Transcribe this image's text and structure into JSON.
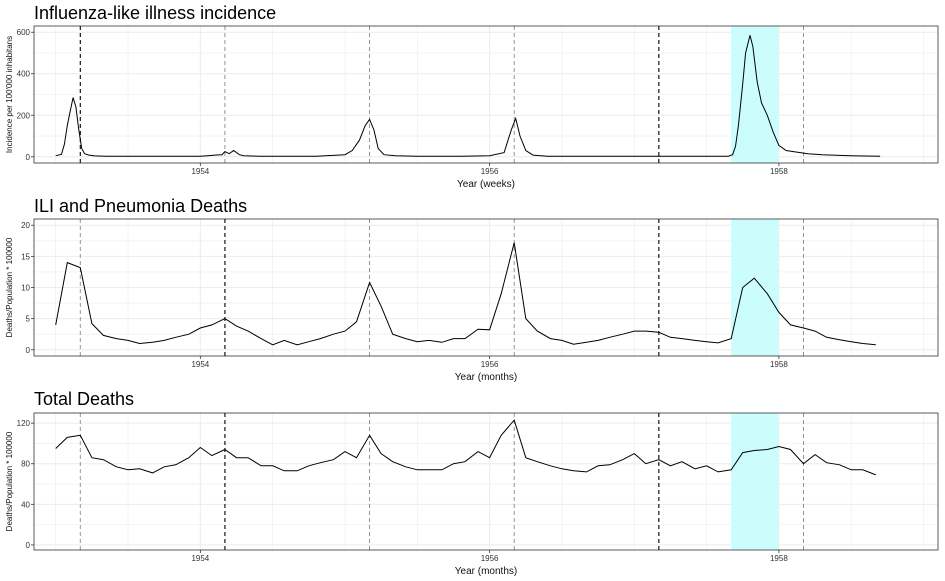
{
  "colors": {
    "highlight": "#ccfdfd",
    "line": "#000000",
    "grid": "#ececec",
    "panel_border": "#333333",
    "vline_dark": "#000000",
    "vline_light": "#888888"
  },
  "chart_data": [
    {
      "type": "line",
      "title": "Influenza-like illness incidence",
      "xlabel": "Year (weeks)",
      "ylabel": "Incidence per 100'000 inhabitans",
      "xlim": [
        1952.85,
        1959.1
      ],
      "ylim": [
        -30,
        630
      ],
      "xticks": [
        1954,
        1956,
        1958
      ],
      "xtick_labels": [
        "1954",
        "1956",
        "1958"
      ],
      "yticks": [
        0,
        200,
        400,
        600
      ],
      "ytick_labels": [
        "0",
        "200",
        "400",
        "600"
      ],
      "grid": true,
      "highlight_span": [
        1957.67,
        1958.0
      ],
      "vlines": [
        {
          "x": 1953.17,
          "style": "dark"
        },
        {
          "x": 1954.17,
          "style": "light"
        },
        {
          "x": 1955.17,
          "style": "light"
        },
        {
          "x": 1956.17,
          "style": "light"
        },
        {
          "x": 1957.17,
          "style": "dark"
        },
        {
          "x": 1958.17,
          "style": "light"
        }
      ],
      "x": [
        1953.0,
        1953.04,
        1953.06,
        1953.08,
        1953.1,
        1953.12,
        1953.14,
        1953.16,
        1953.18,
        1953.2,
        1953.23,
        1953.27,
        1953.35,
        1953.5,
        1953.7,
        1953.9,
        1954.0,
        1954.05,
        1954.1,
        1954.15,
        1954.17,
        1954.2,
        1954.23,
        1954.27,
        1954.3,
        1954.4,
        1954.6,
        1954.8,
        1955.0,
        1955.05,
        1955.1,
        1955.14,
        1955.17,
        1955.2,
        1955.23,
        1955.27,
        1955.35,
        1955.5,
        1955.8,
        1956.0,
        1956.1,
        1956.15,
        1956.18,
        1956.21,
        1956.25,
        1956.3,
        1956.4,
        1956.6,
        1956.8,
        1957.0,
        1957.2,
        1957.5,
        1957.6,
        1957.65,
        1957.68,
        1957.7,
        1957.72,
        1957.75,
        1957.77,
        1957.8,
        1957.82,
        1957.85,
        1957.88,
        1957.92,
        1957.96,
        1958.0,
        1958.05,
        1958.1,
        1958.2,
        1958.3,
        1958.5,
        1958.7
      ],
      "y": [
        5,
        12,
        60,
        150,
        220,
        285,
        240,
        130,
        40,
        15,
        8,
        4,
        3,
        3,
        3,
        3,
        3,
        5,
        8,
        10,
        25,
        15,
        30,
        10,
        5,
        3,
        3,
        3,
        10,
        30,
        80,
        150,
        180,
        130,
        40,
        10,
        5,
        3,
        3,
        5,
        20,
        130,
        185,
        100,
        30,
        8,
        3,
        3,
        3,
        3,
        3,
        3,
        3,
        3,
        10,
        50,
        150,
        350,
        500,
        585,
        530,
        360,
        260,
        200,
        120,
        55,
        30,
        25,
        15,
        10,
        5,
        3
      ]
    },
    {
      "type": "line",
      "title": "ILI and Pneumonia Deaths",
      "xlabel": "Year (months)",
      "ylabel": "Deaths/Population * 100000",
      "xlim": [
        1952.85,
        1959.1
      ],
      "ylim": [
        -1,
        21
      ],
      "xticks": [
        1954,
        1956,
        1958
      ],
      "xtick_labels": [
        "1954",
        "1956",
        "1958"
      ],
      "yticks": [
        0,
        5,
        10,
        15,
        20
      ],
      "ytick_labels": [
        "0",
        "5",
        "10",
        "15",
        "20"
      ],
      "grid": true,
      "highlight_span": [
        1957.67,
        1958.0
      ],
      "vlines": [
        {
          "x": 1953.17,
          "style": "light"
        },
        {
          "x": 1954.17,
          "style": "dark"
        },
        {
          "x": 1955.17,
          "style": "light"
        },
        {
          "x": 1956.17,
          "style": "light"
        },
        {
          "x": 1957.17,
          "style": "dark"
        },
        {
          "x": 1958.17,
          "style": "light"
        }
      ],
      "x": [
        1953.0,
        1953.08,
        1953.17,
        1953.25,
        1953.33,
        1953.42,
        1953.5,
        1953.58,
        1953.67,
        1953.75,
        1953.83,
        1953.92,
        1954.0,
        1954.08,
        1954.17,
        1954.25,
        1954.33,
        1954.42,
        1954.5,
        1954.58,
        1954.67,
        1954.75,
        1954.83,
        1954.92,
        1955.0,
        1955.08,
        1955.17,
        1955.25,
        1955.33,
        1955.42,
        1955.5,
        1955.58,
        1955.67,
        1955.75,
        1955.83,
        1955.92,
        1956.0,
        1956.08,
        1956.17,
        1956.25,
        1956.33,
        1956.42,
        1956.5,
        1956.58,
        1956.67,
        1956.75,
        1956.83,
        1956.92,
        1957.0,
        1957.08,
        1957.17,
        1957.25,
        1957.33,
        1957.42,
        1957.5,
        1957.58,
        1957.67,
        1957.75,
        1957.83,
        1957.92,
        1958.0,
        1958.08,
        1958.17,
        1958.25,
        1958.33,
        1958.42,
        1958.5,
        1958.58,
        1958.67
      ],
      "y": [
        4,
        14,
        13.2,
        4.2,
        2.3,
        1.8,
        1.5,
        1.0,
        1.2,
        1.5,
        2,
        2.5,
        3.5,
        4,
        5,
        3.8,
        3,
        1.8,
        0.8,
        1.5,
        0.8,
        1.3,
        1.8,
        2.5,
        3,
        4.5,
        10.8,
        7,
        2.5,
        1.8,
        1.3,
        1.5,
        1.2,
        1.8,
        1.8,
        3.3,
        3.2,
        9,
        17.2,
        5,
        3,
        1.8,
        1.5,
        0.9,
        1.2,
        1.5,
        2,
        2.5,
        3,
        3,
        2.8,
        2,
        1.8,
        1.5,
        1.3,
        1.1,
        1.8,
        10,
        11.5,
        9,
        6,
        4,
        3.5,
        3,
        2,
        1.6,
        1.3,
        1.0,
        0.8
      ]
    },
    {
      "type": "line",
      "title": "Total Deaths",
      "xlabel": "Year (months)",
      "ylabel": "Deaths/Population * 100000",
      "xlim": [
        1952.85,
        1959.1
      ],
      "ylim": [
        -5,
        130
      ],
      "xticks": [
        1954,
        1956,
        1958
      ],
      "xtick_labels": [
        "1954",
        "1956",
        "1958"
      ],
      "yticks": [
        0,
        40,
        80,
        120
      ],
      "ytick_labels": [
        "0",
        "40",
        "80",
        "120"
      ],
      "grid": true,
      "highlight_span": [
        1957.67,
        1958.0
      ],
      "vlines": [
        {
          "x": 1953.17,
          "style": "light"
        },
        {
          "x": 1954.17,
          "style": "dark"
        },
        {
          "x": 1955.17,
          "style": "light"
        },
        {
          "x": 1956.17,
          "style": "light"
        },
        {
          "x": 1957.17,
          "style": "dark"
        },
        {
          "x": 1958.17,
          "style": "light"
        }
      ],
      "x": [
        1953.0,
        1953.08,
        1953.17,
        1953.25,
        1953.33,
        1953.42,
        1953.5,
        1953.58,
        1953.67,
        1953.75,
        1953.83,
        1953.92,
        1954.0,
        1954.08,
        1954.17,
        1954.25,
        1954.33,
        1954.42,
        1954.5,
        1954.58,
        1954.67,
        1954.75,
        1954.83,
        1954.92,
        1955.0,
        1955.08,
        1955.17,
        1955.25,
        1955.33,
        1955.42,
        1955.5,
        1955.58,
        1955.67,
        1955.75,
        1955.83,
        1955.92,
        1956.0,
        1956.08,
        1956.17,
        1956.25,
        1956.33,
        1956.42,
        1956.5,
        1956.58,
        1956.67,
        1956.75,
        1956.83,
        1956.92,
        1957.0,
        1957.08,
        1957.17,
        1957.25,
        1957.33,
        1957.42,
        1957.5,
        1957.58,
        1957.67,
        1957.75,
        1957.83,
        1957.92,
        1958.0,
        1958.08,
        1958.17,
        1958.25,
        1958.33,
        1958.42,
        1958.5,
        1958.58,
        1958.67
      ],
      "y": [
        95,
        106,
        108,
        86,
        84,
        77,
        74,
        75,
        71,
        77,
        79,
        86,
        96,
        88,
        94,
        86,
        86,
        78,
        78,
        73,
        73,
        78,
        81,
        84,
        92,
        86,
        108,
        90,
        82,
        77,
        74,
        74,
        74,
        80,
        82,
        92,
        86,
        108,
        123,
        86,
        82,
        78,
        75,
        73,
        72,
        78,
        79,
        84,
        90,
        80,
        84,
        78,
        82,
        75,
        78,
        72,
        74,
        91,
        93,
        94,
        97,
        94,
        80,
        89,
        81,
        79,
        74,
        74,
        69
      ]
    }
  ]
}
